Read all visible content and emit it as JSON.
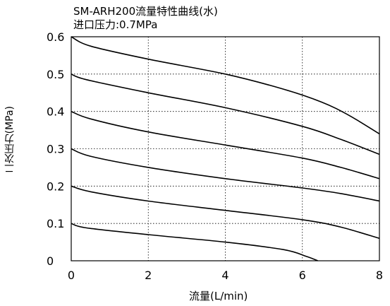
{
  "chart_data": {
    "type": "line",
    "title": "SM-ARH200流量特性曲线(水)",
    "subtitle": "进口压力:0.7MPa",
    "xlabel": "流量(L/min)",
    "ylabel": "二次压力(MPa)",
    "xlim": [
      0,
      8
    ],
    "ylim": [
      0,
      0.6
    ],
    "xticks": [
      "0",
      "2",
      "4",
      "6",
      "8"
    ],
    "yticks": [
      "0",
      "0.1",
      "0.2",
      "0.3",
      "0.4",
      "0.5",
      "0.6"
    ],
    "grid": true,
    "series": [
      {
        "x": [
          0,
          0.5,
          2,
          4,
          5.5,
          6.5,
          7.2,
          8
        ],
        "y": [
          0.6,
          0.575,
          0.54,
          0.5,
          0.46,
          0.425,
          0.39,
          0.34
        ]
      },
      {
        "x": [
          0,
          0.4,
          2,
          4,
          6,
          7,
          8
        ],
        "y": [
          0.5,
          0.485,
          0.45,
          0.41,
          0.36,
          0.325,
          0.285
        ]
      },
      {
        "x": [
          0,
          0.5,
          2,
          4,
          6,
          7,
          8
        ],
        "y": [
          0.4,
          0.38,
          0.345,
          0.31,
          0.275,
          0.25,
          0.22
        ]
      },
      {
        "x": [
          0,
          0.5,
          2,
          4,
          6,
          7,
          8
        ],
        "y": [
          0.3,
          0.28,
          0.25,
          0.22,
          0.195,
          0.18,
          0.16
        ]
      },
      {
        "x": [
          0,
          0.5,
          2,
          4,
          6,
          7,
          8
        ],
        "y": [
          0.2,
          0.185,
          0.16,
          0.135,
          0.11,
          0.09,
          0.06
        ]
      },
      {
        "x": [
          0,
          0.4,
          2,
          4,
          5.5,
          6.1,
          6.4
        ],
        "y": [
          0.1,
          0.088,
          0.07,
          0.05,
          0.03,
          0.012,
          0
        ]
      }
    ]
  }
}
